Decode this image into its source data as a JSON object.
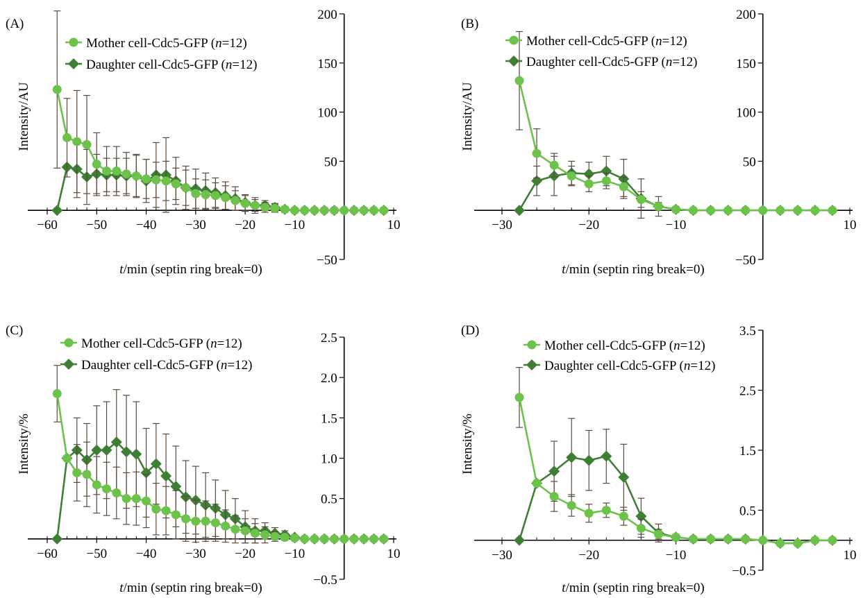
{
  "chart_data": [
    {
      "panel_label": "(A)",
      "type": "line",
      "xlabel": {
        "italic": "t",
        "rest": "/min (septin ring break=0)"
      },
      "ylabel": "Intensity/AU",
      "xlim": [
        -60,
        10
      ],
      "ylim": [
        -50,
        200
      ],
      "xticks": [
        -60,
        -50,
        -40,
        -30,
        -20,
        -10,
        10
      ],
      "yticks": [
        -50,
        50,
        100,
        150,
        200
      ],
      "colors": {
        "mother": "#6cc24a",
        "daughter": "#3f7f35",
        "error_bar": "#5a4a3c"
      },
      "series": [
        {
          "name": "Mother cell-Cdc5-GFP",
          "n_label": "n",
          "n_value": "=12)",
          "marker": "circle",
          "x": [
            -58,
            -56,
            -54,
            -52,
            -50,
            -48,
            -46,
            -44,
            -42,
            -40,
            -38,
            -36,
            -34,
            -32,
            -30,
            -28,
            -26,
            -24,
            -22,
            -20,
            -18,
            -16,
            -14,
            -12,
            -10,
            -8,
            -6,
            -4,
            -2,
            0,
            2,
            4,
            6,
            8
          ],
          "y": [
            123,
            74,
            70,
            67,
            47,
            40,
            40,
            37,
            35,
            32,
            31,
            30,
            27,
            23,
            17,
            16,
            15,
            13,
            10,
            7,
            5,
            3,
            2,
            1,
            0,
            0,
            0,
            0,
            0,
            0,
            0,
            0,
            0,
            0
          ],
          "err": [
            80,
            40,
            52,
            50,
            32,
            25,
            25,
            22,
            22,
            20,
            18,
            20,
            16,
            18,
            15,
            15,
            13,
            12,
            10,
            8,
            8,
            5,
            4,
            3,
            0,
            0,
            0,
            0,
            0,
            0,
            0,
            0,
            0,
            0
          ]
        },
        {
          "name": "Daughter cell-Cdc5-GFP",
          "n_label": "n",
          "n_value": "=12)",
          "marker": "diamond",
          "x": [
            -58,
            -56,
            -54,
            -52,
            -50,
            -48,
            -46,
            -44,
            -42,
            -40,
            -38,
            -36,
            -34,
            -32,
            -30,
            -28,
            -26,
            -24,
            -22,
            -20,
            -18,
            -16,
            -14,
            -12,
            -10,
            -8,
            -6,
            -4,
            -2,
            0,
            2,
            4,
            6,
            8
          ],
          "y": [
            0,
            44,
            42,
            34,
            37,
            36,
            36,
            35,
            35,
            30,
            36,
            36,
            30,
            23,
            22,
            20,
            18,
            15,
            12,
            8,
            5,
            5,
            3,
            1,
            0,
            0,
            0,
            0,
            0,
            0,
            0,
            0,
            0,
            0
          ],
          "err": [
            0,
            0,
            29,
            28,
            20,
            17,
            17,
            18,
            21,
            22,
            33,
            38,
            24,
            22,
            20,
            18,
            15,
            14,
            12,
            8,
            6,
            5,
            4,
            3,
            0,
            0,
            0,
            0,
            0,
            0,
            0,
            0,
            0,
            0
          ]
        }
      ]
    },
    {
      "panel_label": "(B)",
      "type": "line",
      "xlabel": {
        "italic": "t",
        "rest": "/min (septin ring break=0)"
      },
      "ylabel": "Intensity/AU",
      "xlim": [
        -30,
        10
      ],
      "ylim": [
        -50,
        200
      ],
      "xticks": [
        -30,
        -20,
        -10,
        10
      ],
      "yticks": [
        -50,
        50,
        100,
        150,
        200
      ],
      "colors": {
        "mother": "#6cc24a",
        "daughter": "#3f7f35",
        "error_bar": "#5a4a3c"
      },
      "series": [
        {
          "name": "Mother cell-Cdc5-GFP",
          "n_label": "n",
          "n_value": "=12)",
          "marker": "circle",
          "x": [
            -28,
            -26,
            -24,
            -22,
            -20,
            -18,
            -16,
            -14,
            -12,
            -10,
            -8,
            -6,
            -4,
            -2,
            0,
            2,
            4,
            6,
            8
          ],
          "y": [
            132,
            58,
            46,
            35,
            27,
            30,
            24,
            11,
            4,
            1,
            0,
            0,
            0,
            0,
            0,
            0,
            0,
            0,
            0
          ],
          "err": [
            50,
            25,
            12,
            10,
            8,
            8,
            10,
            8,
            4,
            1,
            0,
            0,
            0,
            0,
            0,
            0,
            0,
            0,
            0
          ]
        },
        {
          "name": "Daughter cell-Cdc5-GFP",
          "n_label": "n",
          "n_value": "=12)",
          "marker": "diamond",
          "x": [
            -28,
            -26,
            -24,
            -22,
            -20,
            -18,
            -16,
            -14,
            -12,
            -10,
            -8,
            -6,
            -4,
            -2,
            0,
            2,
            4,
            6,
            8
          ],
          "y": [
            0,
            30,
            35,
            38,
            37,
            40,
            32,
            12,
            4,
            1,
            0,
            0,
            0,
            0,
            0,
            0,
            0,
            0,
            0
          ],
          "err": [
            0,
            15,
            20,
            12,
            12,
            15,
            20,
            20,
            10,
            3,
            0,
            0,
            0,
            0,
            0,
            0,
            0,
            0,
            0
          ]
        }
      ]
    },
    {
      "panel_label": "(C)",
      "type": "line",
      "xlabel": {
        "italic": "t",
        "rest": "/min (septin ring break=0)"
      },
      "ylabel": "Intensity/%",
      "xlim": [
        -60,
        10
      ],
      "ylim": [
        -0.5,
        2.5
      ],
      "xticks": [
        -60,
        -50,
        -40,
        -30,
        -20,
        -10,
        10
      ],
      "yticks": [
        -0.5,
        0.5,
        1.0,
        1.5,
        2.0,
        2.5
      ],
      "ytick_labels": [
        "-0.5",
        "0.5",
        "1.0",
        "1.5",
        "2.0",
        "2.5"
      ],
      "colors": {
        "mother": "#6cc24a",
        "daughter": "#3f7f35",
        "error_bar": "#5a4a3c"
      },
      "series": [
        {
          "name": "Mother cell-Cdc5-GFP",
          "n_label": "n",
          "n_value": "=12)",
          "marker": "circle",
          "x": [
            -58,
            -56,
            -54,
            -52,
            -50,
            -48,
            -46,
            -44,
            -42,
            -40,
            -38,
            -36,
            -34,
            -32,
            -30,
            -28,
            -26,
            -24,
            -22,
            -20,
            -18,
            -16,
            -14,
            -12,
            -10,
            -8,
            -6,
            -4,
            -2,
            0,
            2,
            4,
            6,
            8
          ],
          "y": [
            1.8,
            1.0,
            0.82,
            0.8,
            0.67,
            0.62,
            0.57,
            0.5,
            0.5,
            0.47,
            0.37,
            0.35,
            0.3,
            0.25,
            0.22,
            0.22,
            0.2,
            0.16,
            0.12,
            0.1,
            0.07,
            0.05,
            0.03,
            0.02,
            0.01,
            0,
            0,
            0,
            0,
            0,
            0,
            0,
            0,
            0
          ],
          "err": [
            0.35,
            0.0,
            0.35,
            0.4,
            0.35,
            0.33,
            0.32,
            0.32,
            0.33,
            0.33,
            0.32,
            0.3,
            0.3,
            0.28,
            0.26,
            0.25,
            0.23,
            0.2,
            0.17,
            0.15,
            0.12,
            0.1,
            0.06,
            0.04,
            0.02,
            0,
            0,
            0,
            0,
            0,
            0,
            0,
            0,
            0
          ]
        },
        {
          "name": "Daughter cell-Cdc5-GFP",
          "n_label": "n",
          "n_value": "=12)",
          "marker": "diamond",
          "x": [
            -58,
            -56,
            -54,
            -52,
            -50,
            -48,
            -46,
            -44,
            -42,
            -40,
            -38,
            -36,
            -34,
            -32,
            -30,
            -28,
            -26,
            -24,
            -22,
            -20,
            -18,
            -16,
            -14,
            -12,
            -10,
            -8,
            -6,
            -4,
            -2,
            0,
            2,
            4,
            6,
            8
          ],
          "y": [
            0,
            1.0,
            1.1,
            0.98,
            1.1,
            1.1,
            1.2,
            1.08,
            1.05,
            0.82,
            0.93,
            0.78,
            0.65,
            0.52,
            0.48,
            0.42,
            0.38,
            0.3,
            0.25,
            0.15,
            0.1,
            0.1,
            0.07,
            0.05,
            0.02,
            0,
            0,
            0,
            0,
            0,
            0,
            0,
            0,
            0
          ],
          "err": [
            0,
            0,
            0.4,
            0.45,
            0.55,
            0.6,
            0.65,
            0.7,
            0.65,
            0.55,
            0.5,
            0.52,
            0.5,
            0.45,
            0.42,
            0.4,
            0.35,
            0.3,
            0.25,
            0.2,
            0.15,
            0.1,
            0.07,
            0.05,
            0.03,
            0,
            0,
            0,
            0,
            0,
            0,
            0,
            0,
            0
          ]
        }
      ]
    },
    {
      "panel_label": "(D)",
      "type": "line",
      "xlabel": {
        "italic": "t",
        "rest": "/min (septin ring break=0)"
      },
      "ylabel": "Intensity/%",
      "xlim": [
        -30,
        10
      ],
      "ylim": [
        -0.5,
        3.5
      ],
      "xticks": [
        -30,
        -20,
        -10,
        10
      ],
      "yticks": [
        -0.5,
        0.5,
        1.5,
        2.5,
        3.5
      ],
      "ytick_labels": [
        "-0.5",
        "0.5",
        "1.5",
        "2.5",
        "3.5"
      ],
      "colors": {
        "mother": "#6cc24a",
        "daughter": "#3f7f35",
        "error_bar": "#5a4a3c"
      },
      "series": [
        {
          "name": "Mother cell-Cdc5-GFP",
          "n_label": "n",
          "n_value": "=12)",
          "marker": "circle",
          "x": [
            -28,
            -26,
            -24,
            -22,
            -20,
            -18,
            -16,
            -14,
            -12,
            -10,
            -8,
            -6,
            -4,
            -2,
            0,
            2,
            4,
            6,
            8
          ],
          "y": [
            2.38,
            0.95,
            0.73,
            0.58,
            0.45,
            0.5,
            0.4,
            0.2,
            0.1,
            0.05,
            0.02,
            0.02,
            0.02,
            0.02,
            0,
            -0.05,
            -0.05,
            0,
            0
          ],
          "err": [
            0.5,
            0.0,
            0.25,
            0.18,
            0.15,
            0.12,
            0.15,
            0.15,
            0.08,
            0.05,
            0.02,
            0.02,
            0.02,
            0.02,
            0,
            0,
            0,
            0,
            0
          ]
        },
        {
          "name": "Daughter cell-Cdc5-GFP",
          "n_label": "n",
          "n_value": "=12)",
          "marker": "diamond",
          "x": [
            -28,
            -26,
            -24,
            -22,
            -20,
            -18,
            -16,
            -14,
            -12,
            -10,
            -8,
            -6,
            -4,
            -2,
            0,
            2,
            4,
            6,
            8
          ],
          "y": [
            0,
            0.95,
            1.15,
            1.38,
            1.33,
            1.4,
            1.05,
            0.4,
            0.12,
            0.05,
            0.02,
            0.02,
            0.02,
            0.02,
            0,
            -0.05,
            -0.05,
            0,
            0
          ],
          "err": [
            0,
            0,
            0.5,
            0.65,
            0.5,
            0.45,
            0.55,
            0.3,
            0.15,
            0.05,
            0.02,
            0.02,
            0.02,
            0.02,
            0,
            0,
            0,
            0,
            0
          ]
        }
      ]
    }
  ]
}
